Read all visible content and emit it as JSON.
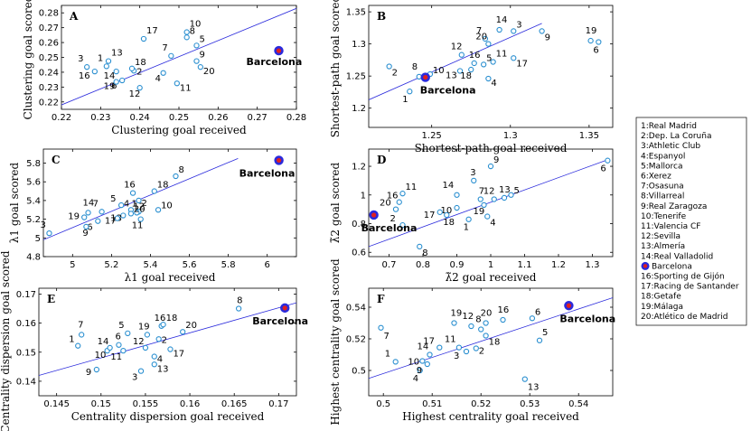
{
  "colors": {
    "point": "#2a8fd0",
    "fit": "#2a2adc",
    "highlight_fill": "#e02020",
    "highlight_ring": "#2a2adc"
  },
  "legend": {
    "items": [
      {
        "id": 1,
        "label": "1:Real Madrid"
      },
      {
        "id": 2,
        "label": "2:Dep. La Coruña"
      },
      {
        "id": 3,
        "label": "3:Athletic Club"
      },
      {
        "id": 4,
        "label": "4:Espanyol"
      },
      {
        "id": 5,
        "label": "5:Mallorca"
      },
      {
        "id": 6,
        "label": "6:Xerez"
      },
      {
        "id": 7,
        "label": "7:Osasuna"
      },
      {
        "id": 8,
        "label": "8:Villarreal"
      },
      {
        "id": 9,
        "label": "9:Real Zaragoza"
      },
      {
        "id": 10,
        "label": "10:Tenerife"
      },
      {
        "id": 11,
        "label": "11:Valencia CF"
      },
      {
        "id": 12,
        "label": "12:Sevilla"
      },
      {
        "id": 13,
        "label": "13:Almería"
      },
      {
        "id": 14,
        "label": "14:Real Valladolid"
      },
      {
        "id": 15,
        "label": "Barcelona",
        "marker": "highlight"
      },
      {
        "id": 16,
        "label": "16:Sporting de Gijón"
      },
      {
        "id": 17,
        "label": "17:Racing de Santander"
      },
      {
        "id": 18,
        "label": "18:Getafe"
      },
      {
        "id": 19,
        "label": "19:Málaga"
      },
      {
        "id": 20,
        "label": "20:Atlético de Madrid"
      }
    ]
  },
  "chart_data": [
    {
      "type": "scatter",
      "panel": "A",
      "xlabel": "Clustering goal received",
      "ylabel": "Clustering goal scored",
      "xlim": [
        0.22,
        0.28
      ],
      "ylim": [
        0.215,
        0.285
      ],
      "xticks": [
        0.22,
        0.23,
        0.24,
        0.25,
        0.26,
        0.27,
        0.28
      ],
      "yticks": [
        0.22,
        0.23,
        0.24,
        0.25,
        0.26,
        0.27,
        0.28
      ],
      "xtick_labels": [
        "0.22",
        "0.23",
        "0.24",
        "0.25",
        "0.26",
        "0.27",
        "0.28"
      ],
      "ytick_labels": [
        "0.22",
        "0.23",
        "0.24",
        "0.25",
        "0.26",
        "0.27",
        "0.28"
      ],
      "fit": [
        [
          0.22,
          0.218
        ],
        [
          0.28,
          0.283
        ]
      ],
      "highlight": {
        "id": 15,
        "label": "Barcelona",
        "x": 0.2755,
        "y": 0.2545
      },
      "points": [
        {
          "id": 1,
          "label": "1",
          "x": 0.2315,
          "y": 0.244
        },
        {
          "id": 2,
          "label": "2",
          "x": 0.2385,
          "y": 0.241
        },
        {
          "id": 3,
          "label": "3",
          "x": 0.2265,
          "y": 0.2435
        },
        {
          "id": 4,
          "label": "4",
          "x": 0.246,
          "y": 0.2395
        },
        {
          "id": 5,
          "label": "5",
          "x": 0.2545,
          "y": 0.258
        },
        {
          "id": 6,
          "label": "6",
          "x": 0.2355,
          "y": 0.2345
        },
        {
          "id": 7,
          "label": "7",
          "x": 0.248,
          "y": 0.251
        },
        {
          "id": 8,
          "label": "8",
          "x": 0.252,
          "y": 0.2635
        },
        {
          "id": 9,
          "label": "9",
          "x": 0.2545,
          "y": 0.2475
        },
        {
          "id": 10,
          "label": "10",
          "x": 0.252,
          "y": 0.267
        },
        {
          "id": 11,
          "label": "11",
          "x": 0.2495,
          "y": 0.2325
        },
        {
          "id": 12,
          "label": "12",
          "x": 0.24,
          "y": 0.2295
        },
        {
          "id": 13,
          "label": "13",
          "x": 0.232,
          "y": 0.2475
        },
        {
          "id": 14,
          "label": "14",
          "x": 0.234,
          "y": 0.2405
        },
        {
          "id": 16,
          "label": "16",
          "x": 0.2285,
          "y": 0.2405
        },
        {
          "id": 17,
          "label": "17",
          "x": 0.241,
          "y": 0.2625
        },
        {
          "id": 18,
          "label": "18",
          "x": 0.238,
          "y": 0.2425
        },
        {
          "id": 19,
          "label": "19",
          "x": 0.234,
          "y": 0.2335
        },
        {
          "id": 20,
          "label": "20",
          "x": 0.2555,
          "y": 0.2435
        }
      ]
    },
    {
      "type": "scatter",
      "panel": "B",
      "xlabel": "Shortest-path goal received",
      "ylabel": "Shortest-path goal scored",
      "xlim": [
        1.21,
        1.365
      ],
      "ylim": [
        1.17,
        1.36
      ],
      "xticks": [
        1.25,
        1.3,
        1.35
      ],
      "yticks": [
        1.2,
        1.25,
        1.3,
        1.35
      ],
      "xtick_labels": [
        "1.25",
        "1.3",
        "1.35"
      ],
      "ytick_labels": [
        "1.2",
        "1.25",
        "1.3",
        "1.35"
      ],
      "fit": [
        [
          1.21,
          1.213
        ],
        [
          1.32,
          1.332
        ]
      ],
      "highlight": {
        "id": 15,
        "label": "Barcelona",
        "x": 1.246,
        "y": 1.248
      },
      "points": [
        {
          "id": 1,
          "label": "1",
          "x": 1.236,
          "y": 1.226
        },
        {
          "id": 2,
          "label": "2",
          "x": 1.223,
          "y": 1.265
        },
        {
          "id": 3,
          "label": "3",
          "x": 1.302,
          "y": 1.32
        },
        {
          "id": 4,
          "label": "4",
          "x": 1.286,
          "y": 1.246
        },
        {
          "id": 5,
          "label": "5",
          "x": 1.283,
          "y": 1.268
        },
        {
          "id": 6,
          "label": "6",
          "x": 1.356,
          "y": 1.303
        },
        {
          "id": 7,
          "label": "7",
          "x": 1.284,
          "y": 1.308
        },
        {
          "id": 8,
          "label": "8",
          "x": 1.242,
          "y": 1.249
        },
        {
          "id": 9,
          "label": "9",
          "x": 1.32,
          "y": 1.32
        },
        {
          "id": 10,
          "label": "10",
          "x": 1.249,
          "y": 1.253
        },
        {
          "id": 11,
          "label": "11",
          "x": 1.289,
          "y": 1.272
        },
        {
          "id": 12,
          "label": "12",
          "x": 1.269,
          "y": 1.283
        },
        {
          "id": 13,
          "label": "13",
          "x": 1.268,
          "y": 1.258
        },
        {
          "id": 14,
          "label": "14",
          "x": 1.293,
          "y": 1.322
        },
        {
          "id": 16,
          "label": "16",
          "x": 1.277,
          "y": 1.27
        },
        {
          "id": 17,
          "label": "17",
          "x": 1.302,
          "y": 1.278
        },
        {
          "id": 18,
          "label": "18",
          "x": 1.275,
          "y": 1.26
        },
        {
          "id": 19,
          "label": "19",
          "x": 1.351,
          "y": 1.305
        },
        {
          "id": 20,
          "label": "20",
          "x": 1.286,
          "y": 1.3
        }
      ]
    },
    {
      "type": "scatter",
      "panel": "C",
      "xlabel": "λ1 goal received",
      "ylabel": "λ1 goal scored",
      "xlim": [
        4.85,
        6.15
      ],
      "ylim": [
        4.8,
        5.95
      ],
      "xticks": [
        5,
        5.2,
        5.4,
        5.6,
        5.8,
        6
      ],
      "yticks": [
        4.8,
        5,
        5.2,
        5.4,
        5.6,
        5.8
      ],
      "xtick_labels": [
        "5",
        "5.2",
        "5.4",
        "5.6",
        "5.8",
        "6"
      ],
      "ytick_labels": [
        "4.8",
        "5",
        "5.2",
        "5.4",
        "5.6",
        "5.8"
      ],
      "fit": [
        [
          4.85,
          4.98
        ],
        [
          5.85,
          5.85
        ]
      ],
      "highlight": {
        "id": 15,
        "label": "Barcelona",
        "x": 6.06,
        "y": 5.83
      },
      "points": [
        {
          "id": 1,
          "label": "1",
          "x": 5.34,
          "y": 5.28
        },
        {
          "id": 2,
          "label": "2",
          "x": 5.34,
          "y": 5.4
        },
        {
          "id": 3,
          "label": "3",
          "x": 4.88,
          "y": 5.05
        },
        {
          "id": 4,
          "label": "4",
          "x": 5.3,
          "y": 5.3
        },
        {
          "id": 5,
          "label": "5",
          "x": 5.25,
          "y": 5.35
        },
        {
          "id": 6,
          "label": "6",
          "x": 5.13,
          "y": 5.18
        },
        {
          "id": 7,
          "label": "7",
          "x": 5.15,
          "y": 5.28
        },
        {
          "id": 8,
          "label": "8",
          "x": 5.53,
          "y": 5.66
        },
        {
          "id": 9,
          "label": "9",
          "x": 5.07,
          "y": 5.12
        },
        {
          "id": 10,
          "label": "10",
          "x": 5.44,
          "y": 5.3
        },
        {
          "id": 11,
          "label": "11",
          "x": 5.35,
          "y": 5.2
        },
        {
          "id": 12,
          "label": "12",
          "x": 5.33,
          "y": 5.27
        },
        {
          "id": 13,
          "label": "13",
          "x": 5.26,
          "y": 5.24
        },
        {
          "id": 14,
          "label": "14",
          "x": 5.08,
          "y": 5.27
        },
        {
          "id": 16,
          "label": "16",
          "x": 5.31,
          "y": 5.48
        },
        {
          "id": 17,
          "label": "17",
          "x": 5.23,
          "y": 5.21
        },
        {
          "id": 18,
          "label": "18",
          "x": 5.42,
          "y": 5.5
        },
        {
          "id": 19,
          "label": "19",
          "x": 5.06,
          "y": 5.22
        },
        {
          "id": 20,
          "label": "20",
          "x": 5.3,
          "y": 5.26
        }
      ]
    },
    {
      "type": "scatter",
      "panel": "D",
      "xlabel": "λ̃2 goal received",
      "ylabel": "λ̃2 goal scored",
      "xlim": [
        0.64,
        1.36
      ],
      "ylim": [
        0.57,
        1.32
      ],
      "xticks": [
        0.7,
        0.8,
        0.9,
        1,
        1.1,
        1.2,
        1.3
      ],
      "yticks": [
        0.6,
        0.8,
        1,
        1.2
      ],
      "xtick_labels": [
        "0.7",
        "0.8",
        "0.9",
        "1",
        "1.1",
        "1.2",
        "1.3"
      ],
      "ytick_labels": [
        "0.6",
        "0.8",
        "1",
        "1.2"
      ],
      "fit": [
        [
          0.64,
          0.64
        ],
        [
          1.35,
          1.25
        ]
      ],
      "highlight": {
        "id": 15,
        "label": "Barcelona",
        "x": 0.655,
        "y": 0.86
      },
      "points": [
        {
          "id": 1,
          "label": "1",
          "x": 0.935,
          "y": 0.83
        },
        {
          "id": 2,
          "label": "2",
          "x": 0.74,
          "y": 0.79
        },
        {
          "id": 3,
          "label": "3",
          "x": 0.95,
          "y": 1.1
        },
        {
          "id": 4,
          "label": "4",
          "x": 0.99,
          "y": 0.85
        },
        {
          "id": 5,
          "label": "5",
          "x": 1.06,
          "y": 1.0
        },
        {
          "id": 6,
          "label": "6",
          "x": 1.345,
          "y": 1.24
        },
        {
          "id": 7,
          "label": "7",
          "x": 0.97,
          "y": 0.97
        },
        {
          "id": 8,
          "label": "8",
          "x": 0.79,
          "y": 0.64
        },
        {
          "id": 9,
          "label": "9",
          "x": 1.0,
          "y": 1.2
        },
        {
          "id": 10,
          "label": "10",
          "x": 0.9,
          "y": 0.91
        },
        {
          "id": 11,
          "label": "11",
          "x": 0.74,
          "y": 1.01
        },
        {
          "id": 12,
          "label": "12",
          "x": 1.01,
          "y": 0.97
        },
        {
          "id": 13,
          "label": "13",
          "x": 1.04,
          "y": 0.98
        },
        {
          "id": 14,
          "label": "14",
          "x": 0.9,
          "y": 1.0
        },
        {
          "id": 16,
          "label": "16",
          "x": 0.73,
          "y": 0.95
        },
        {
          "id": 17,
          "label": "17",
          "x": 0.85,
          "y": 0.88
        },
        {
          "id": 18,
          "label": "18",
          "x": 0.87,
          "y": 0.86
        },
        {
          "id": 19,
          "label": "19",
          "x": 0.98,
          "y": 0.93
        },
        {
          "id": 20,
          "label": "20",
          "x": 0.72,
          "y": 0.9
        }
      ]
    },
    {
      "type": "scatter",
      "panel": "E",
      "xlabel": "Centrality dispersion goal received",
      "ylabel": "Centrality dispersion goal scored",
      "xlim": [
        0.143,
        0.172
      ],
      "ylim": [
        0.135,
        0.172
      ],
      "xticks": [
        0.145,
        0.15,
        0.155,
        0.16,
        0.165,
        0.17
      ],
      "yticks": [
        0.14,
        0.15,
        0.16,
        0.17
      ],
      "xtick_labels": [
        "0.145",
        "0.15",
        "0.155",
        "0.16",
        "0.165",
        "0.17"
      ],
      "ytick_labels": [
        "0.14",
        "0.15",
        "0.16",
        "0.17"
      ],
      "fit": [
        [
          0.143,
          0.142
        ],
        [
          0.172,
          0.167
        ]
      ],
      "highlight": {
        "id": 15,
        "label": "Barcelona",
        "x": 0.1707,
        "y": 0.1652
      },
      "points": [
        {
          "id": 1,
          "label": "1",
          "x": 0.1474,
          "y": 0.1522
        },
        {
          "id": 2,
          "label": "2",
          "x": 0.1565,
          "y": 0.1545
        },
        {
          "id": 3,
          "label": "3",
          "x": 0.1545,
          "y": 0.1435
        },
        {
          "id": 4,
          "label": "4",
          "x": 0.156,
          "y": 0.1485
        },
        {
          "id": 5,
          "label": "5",
          "x": 0.153,
          "y": 0.1565
        },
        {
          "id": 6,
          "label": "6",
          "x": 0.152,
          "y": 0.1525
        },
        {
          "id": 7,
          "label": "7",
          "x": 0.1478,
          "y": 0.156
        },
        {
          "id": 8,
          "label": "8",
          "x": 0.1655,
          "y": 0.165
        },
        {
          "id": 9,
          "label": "9",
          "x": 0.1495,
          "y": 0.144
        },
        {
          "id": 10,
          "label": "10",
          "x": 0.1507,
          "y": 0.1505
        },
        {
          "id": 11,
          "label": "11",
          "x": 0.1525,
          "y": 0.1505
        },
        {
          "id": 12,
          "label": "12",
          "x": 0.155,
          "y": 0.1515
        },
        {
          "id": 13,
          "label": "13",
          "x": 0.156,
          "y": 0.1458
        },
        {
          "id": 14,
          "label": "14",
          "x": 0.151,
          "y": 0.1515
        },
        {
          "id": 16,
          "label": "16",
          "x": 0.1568,
          "y": 0.159
        },
        {
          "id": 17,
          "label": "17",
          "x": 0.1578,
          "y": 0.151
        },
        {
          "id": 18,
          "label": "18",
          "x": 0.157,
          "y": 0.1595
        },
        {
          "id": 19,
          "label": "19",
          "x": 0.1552,
          "y": 0.156
        },
        {
          "id": 20,
          "label": "20",
          "x": 0.1592,
          "y": 0.157
        }
      ]
    },
    {
      "type": "scatter",
      "panel": "F",
      "xlabel": "Highest centrality goal received",
      "ylabel": "Highest centrality goal scored",
      "xlim": [
        0.497,
        0.547
      ],
      "ylim": [
        0.484,
        0.552
      ],
      "xticks": [
        0.5,
        0.51,
        0.52,
        0.53,
        0.54
      ],
      "yticks": [
        0.5,
        0.52,
        0.54
      ],
      "xtick_labels": [
        "0.5",
        "0.51",
        "0.52",
        "0.53",
        "0.54"
      ],
      "ytick_labels": [
        "0.5",
        "0.52",
        "0.54"
      ],
      "fit": [
        [
          0.497,
          0.495
        ],
        [
          0.547,
          0.546
        ]
      ],
      "highlight": {
        "id": 15,
        "label": "Barcelona",
        "x": 0.538,
        "y": 0.541
      },
      "points": [
        {
          "id": 1,
          "label": "1",
          "x": 0.5025,
          "y": 0.5055
        },
        {
          "id": 2,
          "label": "2",
          "x": 0.519,
          "y": 0.514
        },
        {
          "id": 3,
          "label": "3",
          "x": 0.517,
          "y": 0.512
        },
        {
          "id": 4,
          "label": "4",
          "x": 0.5075,
          "y": 0.5
        },
        {
          "id": 5,
          "label": "5",
          "x": 0.532,
          "y": 0.519
        },
        {
          "id": 6,
          "label": "6",
          "x": 0.5305,
          "y": 0.533
        },
        {
          "id": 7,
          "label": "7",
          "x": 0.4995,
          "y": 0.527
        },
        {
          "id": 8,
          "label": "8",
          "x": 0.52,
          "y": 0.526
        },
        {
          "id": 9,
          "label": "9",
          "x": 0.509,
          "y": 0.504
        },
        {
          "id": 10,
          "label": "10",
          "x": 0.508,
          "y": 0.506
        },
        {
          "id": 11,
          "label": "11",
          "x": 0.5155,
          "y": 0.5145
        },
        {
          "id": 12,
          "label": "12",
          "x": 0.518,
          "y": 0.528
        },
        {
          "id": 13,
          "label": "13",
          "x": 0.529,
          "y": 0.4945
        },
        {
          "id": 14,
          "label": "14",
          "x": 0.5095,
          "y": 0.51
        },
        {
          "id": 16,
          "label": "16",
          "x": 0.5245,
          "y": 0.532
        },
        {
          "id": 17,
          "label": "17",
          "x": 0.5115,
          "y": 0.5145
        },
        {
          "id": 18,
          "label": "18",
          "x": 0.521,
          "y": 0.522
        },
        {
          "id": 19,
          "label": "19",
          "x": 0.5145,
          "y": 0.53
        },
        {
          "id": 20,
          "label": "20",
          "x": 0.521,
          "y": 0.53
        }
      ]
    }
  ]
}
